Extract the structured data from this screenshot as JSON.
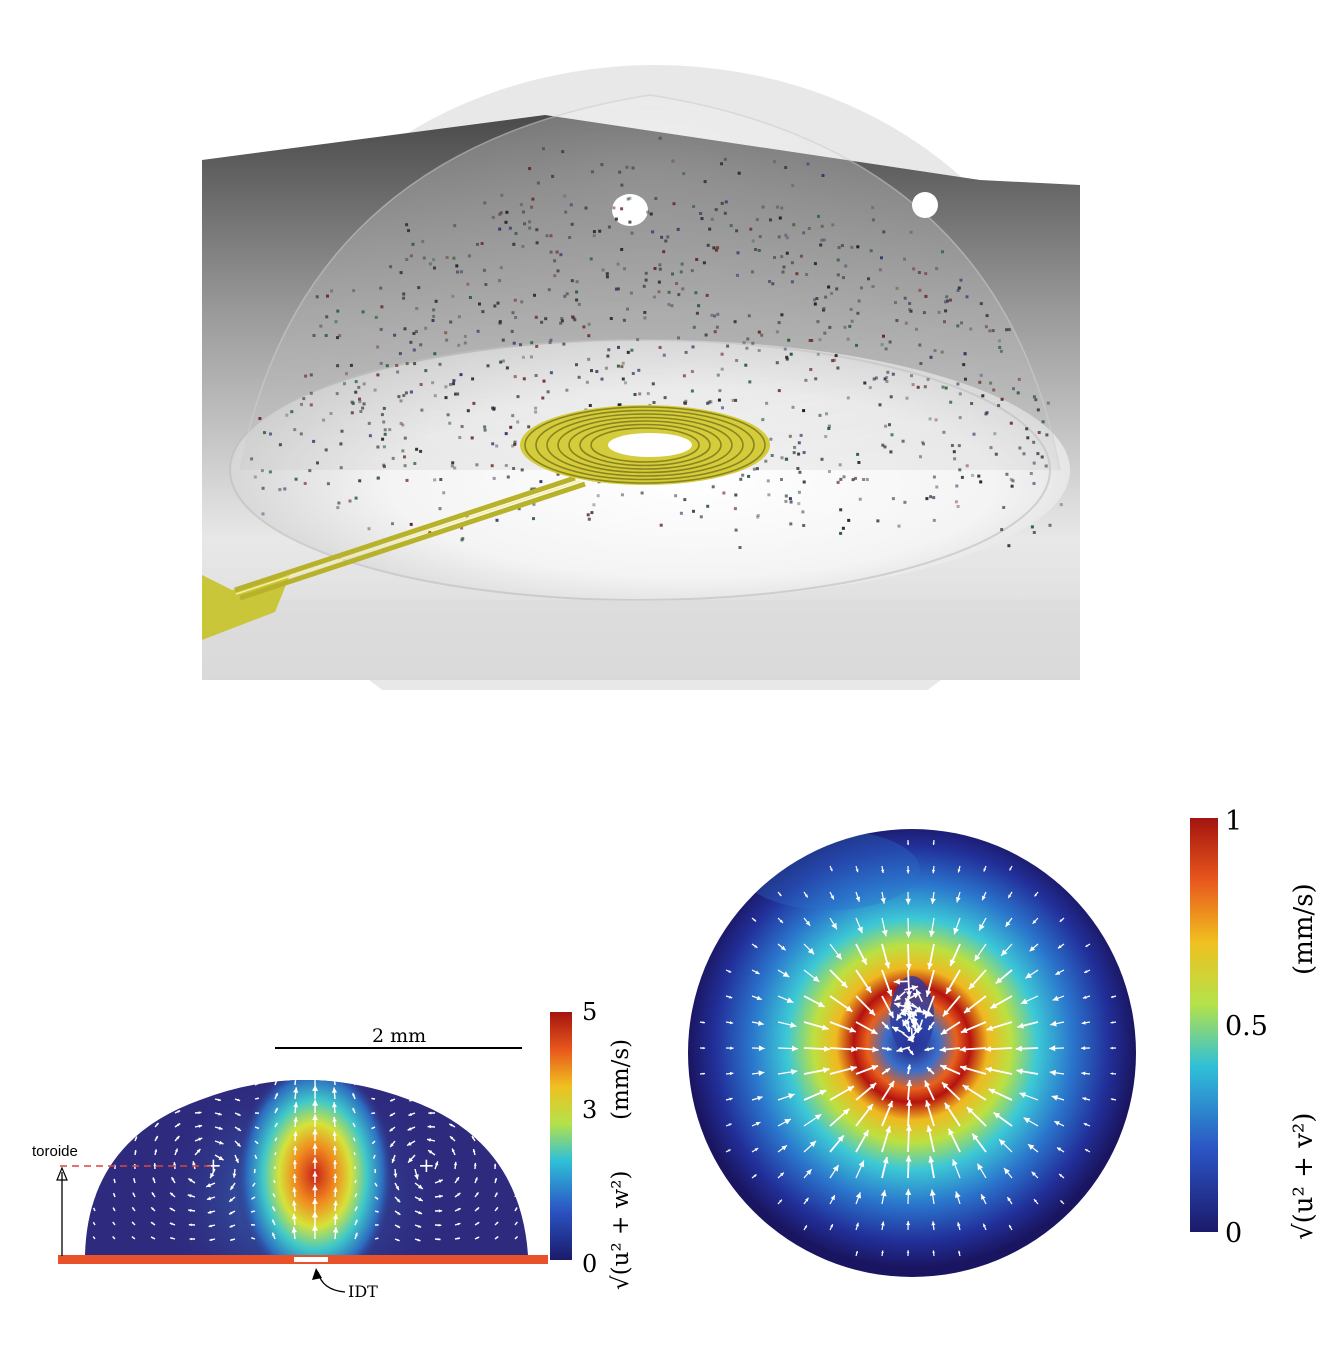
{
  "top_panel": {
    "elements": [
      "droplet-dome",
      "spiral-idt",
      "electrode-leads",
      "particles",
      "light-spots"
    ]
  },
  "side_view": {
    "scale_label": "2 mm",
    "toroide_label": "toroide",
    "idt_label": "IDT",
    "colorbar": {
      "ticks": [
        "5",
        "3",
        "0"
      ],
      "label_math": "√(u² + w²)",
      "unit": "(mm/s)"
    },
    "colors": {
      "substrate": "#e8512a",
      "hot": "#c8221a",
      "cold": "#2e2a7e"
    }
  },
  "top_view": {
    "colorbar": {
      "ticks": [
        "1",
        "0.5",
        "0"
      ],
      "label_math": "√(u² + v²)",
      "unit": "(mm/s)"
    },
    "colors": {
      "hot": "#b5120f",
      "cold": "#1a1560"
    }
  }
}
